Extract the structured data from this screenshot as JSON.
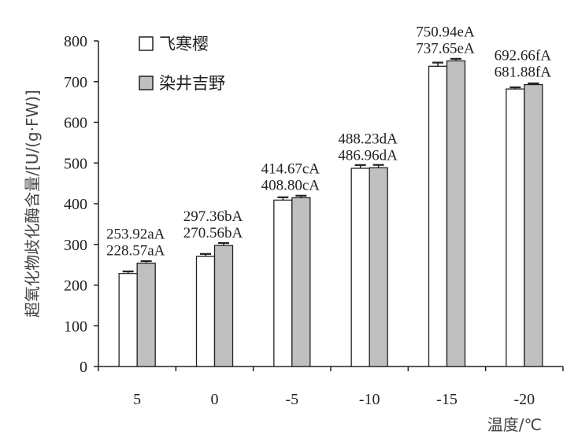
{
  "chart_data": {
    "type": "bar",
    "categories": [
      "5",
      "0",
      "-5",
      "-10",
      "-15",
      "-20"
    ],
    "series": [
      {
        "name": "飞寒樱",
        "color": "#ffffff",
        "values": [
          228.57,
          270.56,
          408.8,
          486.96,
          737.65,
          681.88
        ],
        "errors": [
          5,
          6,
          7,
          8,
          9,
          4
        ],
        "labels": [
          "228.57aA",
          "270.56bA",
          "408.80cA",
          "486.96dA",
          "737.65eA",
          "681.88fA"
        ]
      },
      {
        "name": "染井吉野",
        "color": "#c0c0c0",
        "values": [
          253.92,
          297.36,
          414.67,
          488.23,
          750.94,
          692.66
        ],
        "errors": [
          5,
          6,
          5,
          7,
          5,
          3
        ],
        "labels": [
          "253.92aA",
          "297.36bA",
          "414.67cA",
          "488.23dA",
          "750.94eA",
          "692.66fA"
        ]
      }
    ],
    "xlabel": "温度/℃",
    "ylabel": "超氧化物歧化酶含量/[U/(g·FW)]",
    "ylim": [
      0,
      800
    ],
    "yticks": [
      "0",
      "100",
      "200",
      "300",
      "400",
      "500",
      "600",
      "700",
      "800"
    ],
    "grid": false,
    "legend_position": "top-left"
  }
}
